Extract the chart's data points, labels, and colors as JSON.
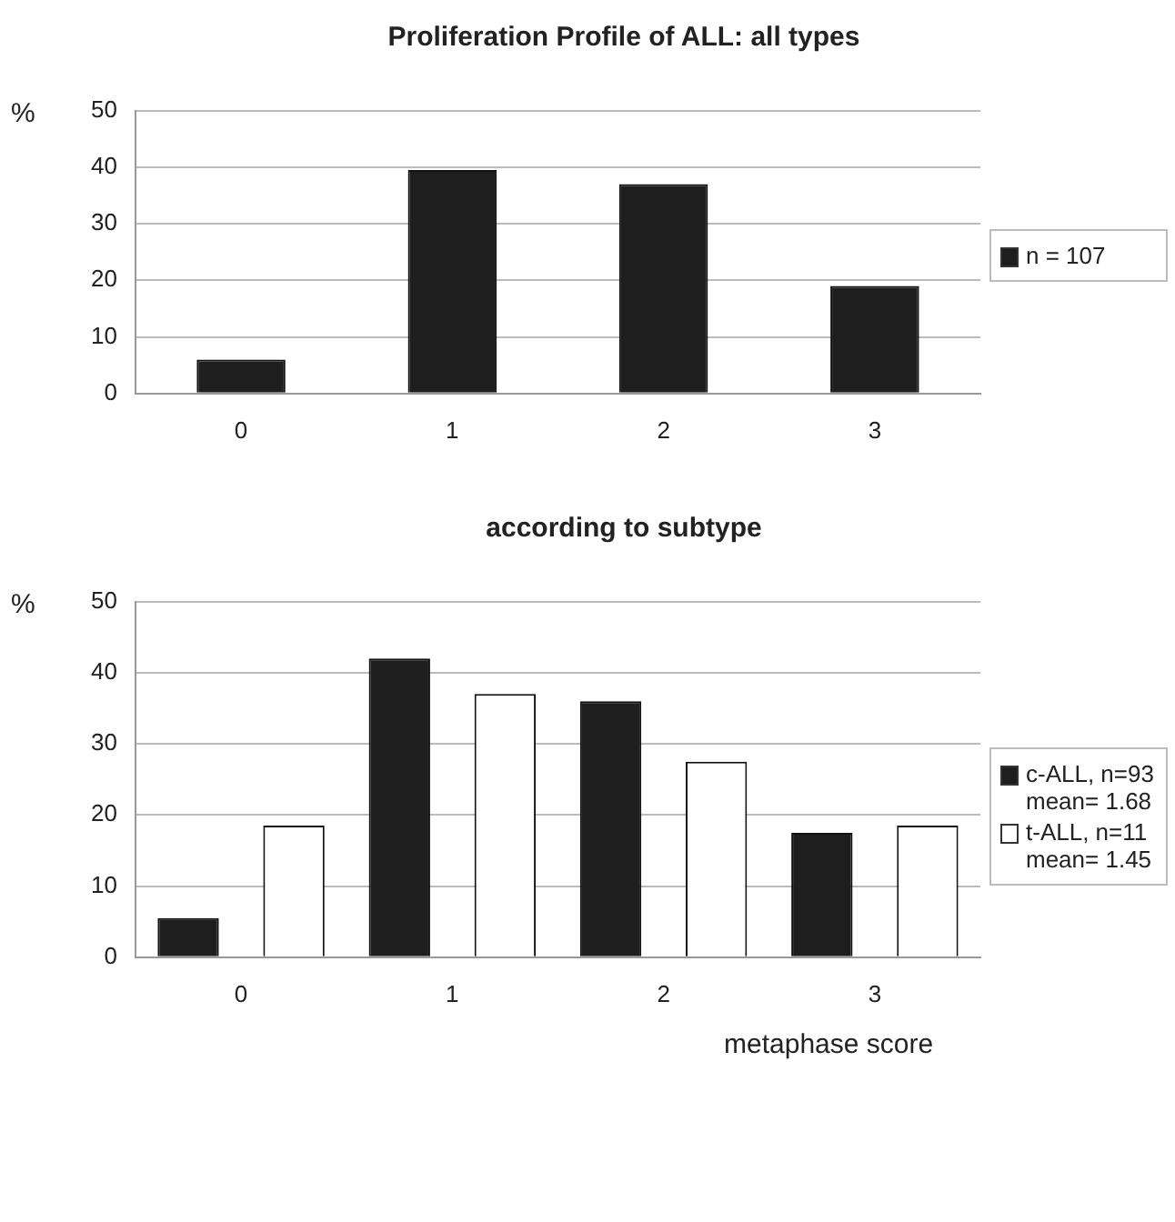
{
  "chart_data": [
    {
      "type": "bar",
      "title": "Proliferation Profile of ALL: all types",
      "ylabel": "%",
      "categories": [
        "0",
        "1",
        "2",
        "3"
      ],
      "series": [
        {
          "name": "n = 107",
          "color": "#1e1e1e",
          "values": [
            6,
            39.5,
            37,
            19
          ]
        }
      ],
      "ylim": [
        0,
        50
      ],
      "yticks": [
        0,
        10,
        20,
        30,
        40,
        50
      ],
      "grid": "y",
      "legend": "right"
    },
    {
      "type": "bar",
      "title": "according to subtype",
      "ylabel": "%",
      "xlabel": "metaphase score",
      "categories": [
        "0",
        "1",
        "2",
        "3"
      ],
      "series": [
        {
          "name": "c-ALL, n=93 mean= 1.68",
          "color": "#1e1e1e",
          "values": [
            5.5,
            42,
            36,
            17.5
          ]
        },
        {
          "name": "t-ALL, n=11 mean= 1.45",
          "color": "#ffffff",
          "values": [
            18.5,
            37,
            27.5,
            18.5
          ]
        }
      ],
      "ylim": [
        0,
        50
      ],
      "yticks": [
        0,
        10,
        20,
        30,
        40,
        50
      ],
      "grid": "y",
      "legend": "right"
    }
  ]
}
